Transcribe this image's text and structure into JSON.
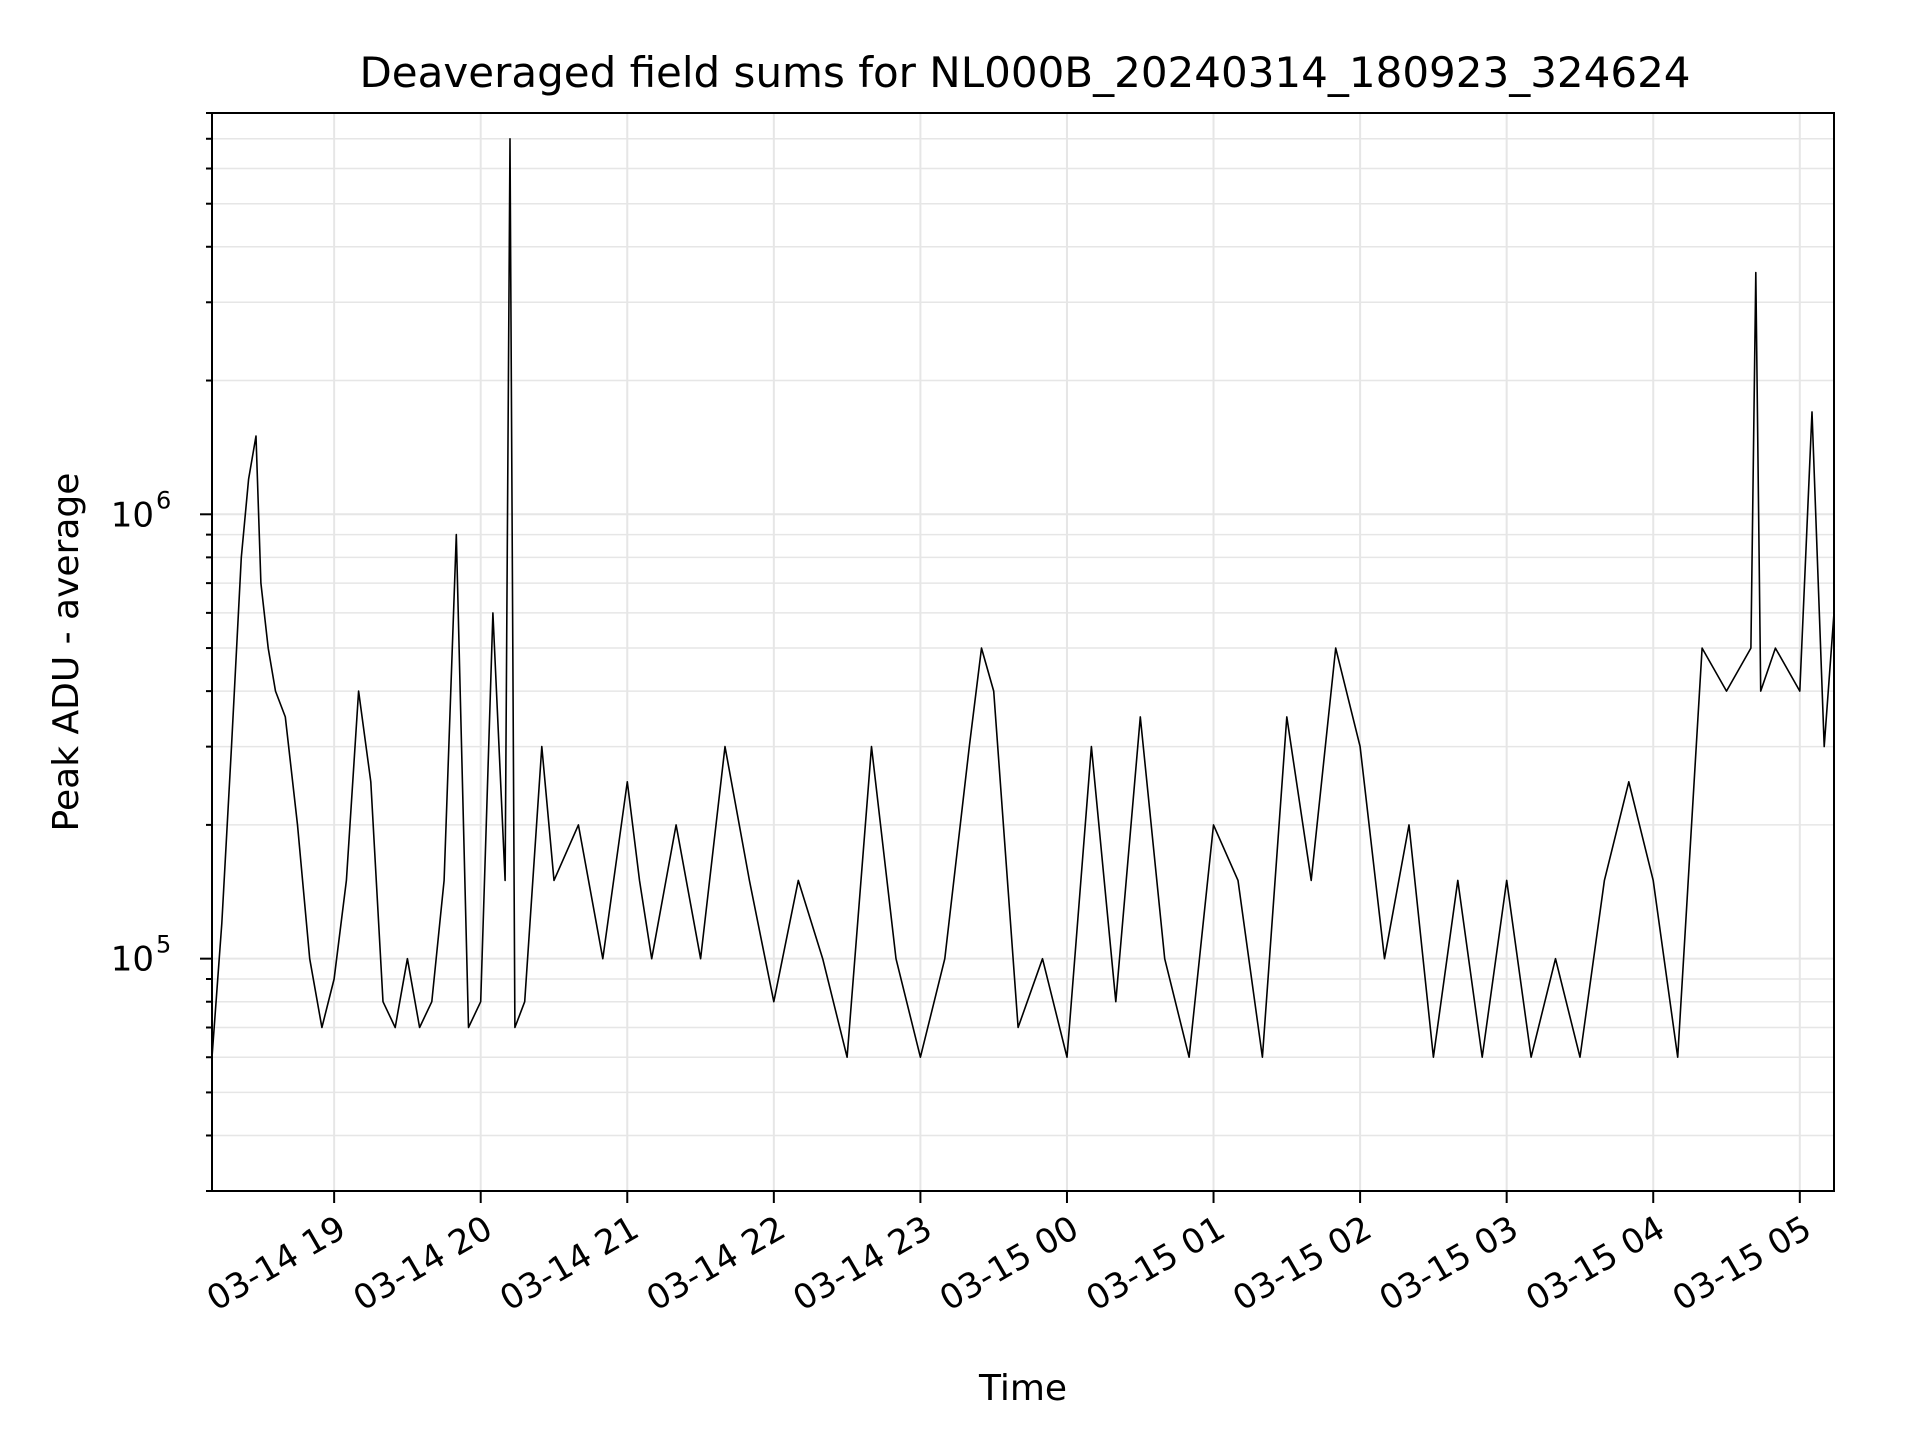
{
  "chart_data": {
    "type": "line",
    "title": "Deaveraged field sums for NL000B_20240314_180923_324624",
    "xlabel": "Time",
    "ylabel": "Peak ADU - average",
    "y_scale": "log",
    "ylim": [
      30000,
      8000000
    ],
    "xlim": [
      "2024-03-14 18:10",
      "2024-03-15 05:14"
    ],
    "grid": true,
    "line_color": "#000000",
    "grid_color": "#e6e6e6",
    "x_ticks": [
      {
        "value": "2024-03-14 19:00",
        "label": "03-14 19"
      },
      {
        "value": "2024-03-14 20:00",
        "label": "03-14 20"
      },
      {
        "value": "2024-03-14 21:00",
        "label": "03-14 21"
      },
      {
        "value": "2024-03-14 22:00",
        "label": "03-14 22"
      },
      {
        "value": "2024-03-14 23:00",
        "label": "03-14 23"
      },
      {
        "value": "2024-03-15 00:00",
        "label": "03-15 00"
      },
      {
        "value": "2024-03-15 01:00",
        "label": "03-15 01"
      },
      {
        "value": "2024-03-15 02:00",
        "label": "03-15 02"
      },
      {
        "value": "2024-03-15 03:00",
        "label": "03-15 03"
      },
      {
        "value": "2024-03-15 04:00",
        "label": "03-15 04"
      },
      {
        "value": "2024-03-15 05:00",
        "label": "03-15 05"
      }
    ],
    "y_ticks": [
      {
        "value": 100000,
        "base": "10",
        "exp": "5"
      },
      {
        "value": 1000000,
        "base": "10",
        "exp": "6"
      }
    ],
    "series": [
      {
        "x": [
          "2024-03-14 18:10",
          "2024-03-14 18:14",
          "2024-03-14 18:18",
          "2024-03-14 18:22",
          "2024-03-14 18:25",
          "2024-03-14 18:28",
          "2024-03-14 18:30",
          "2024-03-14 18:33",
          "2024-03-14 18:36",
          "2024-03-14 18:40",
          "2024-03-14 18:45",
          "2024-03-14 18:50",
          "2024-03-14 18:55",
          "2024-03-14 19:00",
          "2024-03-14 19:05",
          "2024-03-14 19:10",
          "2024-03-14 19:15",
          "2024-03-14 19:20",
          "2024-03-14 19:25",
          "2024-03-14 19:30",
          "2024-03-14 19:35",
          "2024-03-14 19:40",
          "2024-03-14 19:45",
          "2024-03-14 19:50",
          "2024-03-14 19:55",
          "2024-03-14 20:00",
          "2024-03-14 20:05",
          "2024-03-14 20:10",
          "2024-03-14 20:12",
          "2024-03-14 20:14",
          "2024-03-14 20:18",
          "2024-03-14 20:25",
          "2024-03-14 20:30",
          "2024-03-14 20:40",
          "2024-03-14 20:50",
          "2024-03-14 21:00",
          "2024-03-14 21:05",
          "2024-03-14 21:10",
          "2024-03-14 21:20",
          "2024-03-14 21:30",
          "2024-03-14 21:40",
          "2024-03-14 21:50",
          "2024-03-14 22:00",
          "2024-03-14 22:10",
          "2024-03-14 22:20",
          "2024-03-14 22:30",
          "2024-03-14 22:40",
          "2024-03-14 22:50",
          "2024-03-14 23:00",
          "2024-03-14 23:10",
          "2024-03-14 23:20",
          "2024-03-14 23:25",
          "2024-03-14 23:30",
          "2024-03-14 23:40",
          "2024-03-14 23:50",
          "2024-03-15 00:00",
          "2024-03-15 00:10",
          "2024-03-15 00:20",
          "2024-03-15 00:30",
          "2024-03-15 00:40",
          "2024-03-15 00:50",
          "2024-03-15 01:00",
          "2024-03-15 01:10",
          "2024-03-15 01:20",
          "2024-03-15 01:30",
          "2024-03-15 01:40",
          "2024-03-15 01:50",
          "2024-03-15 02:00",
          "2024-03-15 02:10",
          "2024-03-15 02:20",
          "2024-03-15 02:30",
          "2024-03-15 02:40",
          "2024-03-15 02:50",
          "2024-03-15 03:00",
          "2024-03-15 03:10",
          "2024-03-15 03:20",
          "2024-03-15 03:30",
          "2024-03-15 03:40",
          "2024-03-15 03:50",
          "2024-03-15 04:00",
          "2024-03-15 04:10",
          "2024-03-15 04:20",
          "2024-03-15 04:30",
          "2024-03-15 04:40",
          "2024-03-15 04:42",
          "2024-03-15 04:44",
          "2024-03-15 04:50",
          "2024-03-15 05:00",
          "2024-03-15 05:05",
          "2024-03-15 05:10",
          "2024-03-15 05:14"
        ],
        "y": [
          60000,
          120000,
          300000,
          800000,
          1200000,
          1500000,
          700000,
          500000,
          400000,
          350000,
          200000,
          100000,
          70000,
          90000,
          150000,
          400000,
          250000,
          80000,
          70000,
          100000,
          70000,
          80000,
          150000,
          900000,
          70000,
          80000,
          600000,
          150000,
          7000000,
          70000,
          80000,
          300000,
          150000,
          200000,
          100000,
          250000,
          150000,
          100000,
          200000,
          100000,
          300000,
          150000,
          80000,
          150000,
          100000,
          60000,
          300000,
          100000,
          60000,
          100000,
          300000,
          500000,
          400000,
          70000,
          100000,
          60000,
          300000,
          80000,
          350000,
          100000,
          60000,
          200000,
          150000,
          60000,
          350000,
          150000,
          500000,
          300000,
          100000,
          200000,
          60000,
          150000,
          60000,
          150000,
          60000,
          100000,
          60000,
          150000,
          250000,
          150000,
          60000,
          500000,
          400000,
          500000,
          3500000,
          400000,
          500000,
          400000,
          1700000,
          300000,
          600000
        ]
      }
    ]
  }
}
